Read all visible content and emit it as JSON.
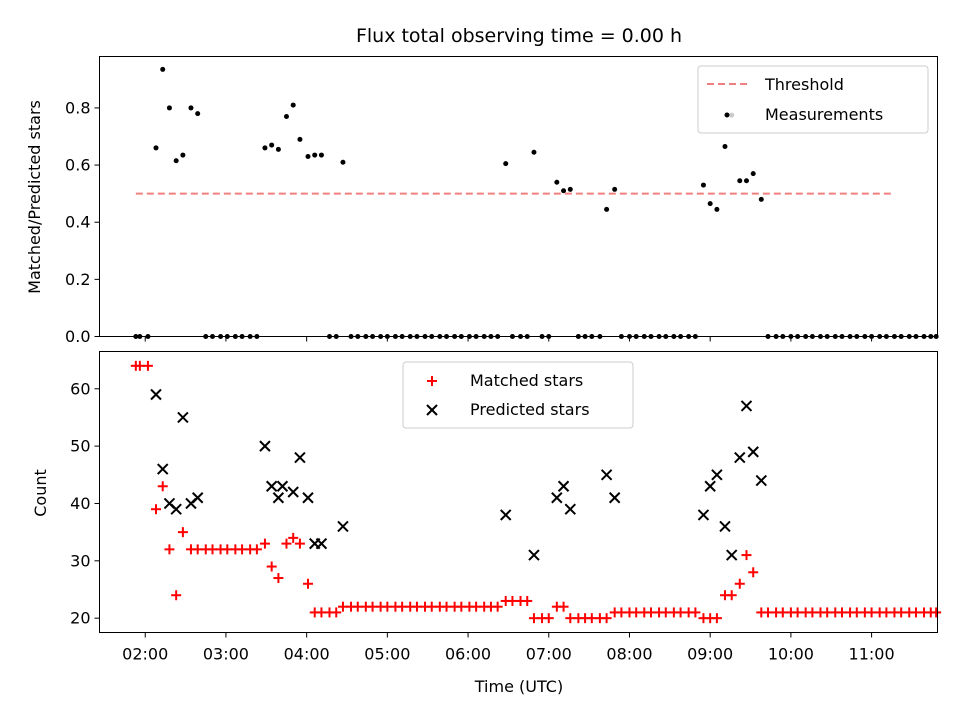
{
  "chart_data": [
    {
      "type": "scatter",
      "title": "Flux total observing time = 0.00 h",
      "ylabel": "Matched/Predicted stars",
      "xlabel": "",
      "x_unit": "hours UTC",
      "xlim": [
        "01:26",
        "11:49"
      ],
      "ylim": [
        0,
        0.98
      ],
      "y_ticks": [
        0.0,
        0.2,
        0.4,
        0.6,
        0.8
      ],
      "x_ticks": [
        "02:00",
        "03:00",
        "04:00",
        "05:00",
        "06:00",
        "07:00",
        "08:00",
        "09:00",
        "10:00",
        "11:00"
      ],
      "show_x_tick_labels": false,
      "legend_position": "top-right",
      "threshold": {
        "name": "Threshold",
        "value": 0.5,
        "x_range": [
          "01:53",
          "11:15"
        ],
        "color": "#f08080"
      },
      "series": [
        {
          "name": "Measurements",
          "marker": "dot",
          "color": "#000000",
          "points": [
            [
              "01:53",
              0
            ],
            [
              "01:56",
              0
            ],
            [
              "02:02",
              0
            ],
            [
              "02:08",
              0.66
            ],
            [
              "02:13",
              0.935
            ],
            [
              "02:18",
              0.8
            ],
            [
              "02:23",
              0.615
            ],
            [
              "02:28",
              0.635
            ],
            [
              "02:34",
              0.8
            ],
            [
              "02:39",
              0.78
            ],
            [
              "02:45",
              0
            ],
            [
              "02:50",
              0
            ],
            [
              "02:56",
              0
            ],
            [
              "03:01",
              0
            ],
            [
              "03:07",
              0
            ],
            [
              "03:12",
              0
            ],
            [
              "03:18",
              0
            ],
            [
              "03:23",
              0
            ],
            [
              "03:29",
              0.66
            ],
            [
              "03:34",
              0.67
            ],
            [
              "03:39",
              0.655
            ],
            [
              "03:45",
              0.77
            ],
            [
              "03:50",
              0.81
            ],
            [
              "03:55",
              0.69
            ],
            [
              "04:01",
              0.63
            ],
            [
              "04:06",
              0.635
            ],
            [
              "04:11",
              0.635
            ],
            [
              "04:17",
              0
            ],
            [
              "04:22",
              0
            ],
            [
              "04:27",
              0.61
            ],
            [
              "04:33",
              0
            ],
            [
              "04:38",
              0
            ],
            [
              "04:44",
              0
            ],
            [
              "04:49",
              0
            ],
            [
              "04:55",
              0
            ],
            [
              "05:00",
              0
            ],
            [
              "05:06",
              0
            ],
            [
              "05:11",
              0
            ],
            [
              "05:17",
              0
            ],
            [
              "05:22",
              0
            ],
            [
              "05:28",
              0
            ],
            [
              "05:33",
              0
            ],
            [
              "05:39",
              0
            ],
            [
              "05:44",
              0
            ],
            [
              "05:50",
              0
            ],
            [
              "05:55",
              0
            ],
            [
              "06:01",
              0
            ],
            [
              "06:06",
              0
            ],
            [
              "06:12",
              0
            ],
            [
              "06:17",
              0
            ],
            [
              "06:22",
              0
            ],
            [
              "06:28",
              0.605
            ],
            [
              "06:33",
              0
            ],
            [
              "06:39",
              0
            ],
            [
              "06:44",
              0
            ],
            [
              "06:49",
              0.645
            ],
            [
              "06:55",
              0
            ],
            [
              "07:00",
              0
            ],
            [
              "07:06",
              0.54
            ],
            [
              "07:11",
              0.51
            ],
            [
              "07:16",
              0.515
            ],
            [
              "07:22",
              0
            ],
            [
              "07:27",
              0
            ],
            [
              "07:32",
              0
            ],
            [
              "07:38",
              0
            ],
            [
              "07:43",
              0.445
            ],
            [
              "07:49",
              0.515
            ],
            [
              "07:54",
              0
            ],
            [
              "08:00",
              0
            ],
            [
              "08:05",
              0
            ],
            [
              "08:11",
              0
            ],
            [
              "08:16",
              0
            ],
            [
              "08:22",
              0
            ],
            [
              "08:27",
              0
            ],
            [
              "08:33",
              0
            ],
            [
              "08:38",
              0
            ],
            [
              "08:44",
              0
            ],
            [
              "08:49",
              0
            ],
            [
              "08:55",
              0.53
            ],
            [
              "09:00",
              0.465
            ],
            [
              "09:05",
              0.445
            ],
            [
              "09:11",
              0.665
            ],
            [
              "09:16",
              0.775
            ],
            [
              "09:22",
              0.545
            ],
            [
              "09:27",
              0.545
            ],
            [
              "09:32",
              0.57
            ],
            [
              "09:38",
              0.48
            ],
            [
              "09:43",
              0
            ],
            [
              "09:49",
              0
            ],
            [
              "09:54",
              0
            ],
            [
              "10:00",
              0
            ],
            [
              "10:05",
              0
            ],
            [
              "10:11",
              0
            ],
            [
              "10:16",
              0
            ],
            [
              "10:22",
              0
            ],
            [
              "10:27",
              0
            ],
            [
              "10:33",
              0
            ],
            [
              "10:38",
              0
            ],
            [
              "10:44",
              0
            ],
            [
              "10:49",
              0
            ],
            [
              "10:55",
              0
            ],
            [
              "11:00",
              0
            ],
            [
              "11:06",
              0
            ],
            [
              "11:11",
              0
            ],
            [
              "11:17",
              0
            ],
            [
              "11:22",
              0
            ],
            [
              "11:28",
              0
            ],
            [
              "11:33",
              0
            ],
            [
              "11:39",
              0
            ],
            [
              "11:44",
              0
            ],
            [
              "11:48",
              0
            ]
          ]
        }
      ]
    },
    {
      "type": "scatter",
      "title": "",
      "ylabel": "Count",
      "xlabel": "Time (UTC)",
      "x_unit": "hours UTC",
      "xlim": [
        "01:26",
        "11:49"
      ],
      "ylim": [
        17.5,
        66.5
      ],
      "y_ticks": [
        20,
        30,
        40,
        50,
        60
      ],
      "x_ticks": [
        "02:00",
        "03:00",
        "04:00",
        "05:00",
        "06:00",
        "07:00",
        "08:00",
        "09:00",
        "10:00",
        "11:00"
      ],
      "show_x_tick_labels": true,
      "legend_position": "top-center",
      "series": [
        {
          "name": "Matched stars",
          "marker": "plus",
          "color": "#ff0000",
          "points": [
            [
              "01:53",
              64
            ],
            [
              "01:56",
              64
            ],
            [
              "02:02",
              64
            ],
            [
              "02:08",
              39
            ],
            [
              "02:13",
              43
            ],
            [
              "02:18",
              32
            ],
            [
              "02:23",
              24
            ],
            [
              "02:28",
              35
            ],
            [
              "02:34",
              32
            ],
            [
              "02:39",
              32
            ],
            [
              "02:45",
              32
            ],
            [
              "02:50",
              32
            ],
            [
              "02:56",
              32
            ],
            [
              "03:01",
              32
            ],
            [
              "03:07",
              32
            ],
            [
              "03:12",
              32
            ],
            [
              "03:18",
              32
            ],
            [
              "03:23",
              32
            ],
            [
              "03:29",
              33
            ],
            [
              "03:34",
              29
            ],
            [
              "03:39",
              27
            ],
            [
              "03:45",
              33
            ],
            [
              "03:50",
              34
            ],
            [
              "03:55",
              33
            ],
            [
              "04:01",
              26
            ],
            [
              "04:06",
              21
            ],
            [
              "04:11",
              21
            ],
            [
              "04:17",
              21
            ],
            [
              "04:22",
              21
            ],
            [
              "04:27",
              22
            ],
            [
              "04:33",
              22
            ],
            [
              "04:38",
              22
            ],
            [
              "04:44",
              22
            ],
            [
              "04:49",
              22
            ],
            [
              "04:55",
              22
            ],
            [
              "05:00",
              22
            ],
            [
              "05:06",
              22
            ],
            [
              "05:11",
              22
            ],
            [
              "05:17",
              22
            ],
            [
              "05:22",
              22
            ],
            [
              "05:28",
              22
            ],
            [
              "05:33",
              22
            ],
            [
              "05:39",
              22
            ],
            [
              "05:44",
              22
            ],
            [
              "05:50",
              22
            ],
            [
              "05:55",
              22
            ],
            [
              "06:01",
              22
            ],
            [
              "06:06",
              22
            ],
            [
              "06:12",
              22
            ],
            [
              "06:17",
              22
            ],
            [
              "06:22",
              22
            ],
            [
              "06:28",
              23
            ],
            [
              "06:33",
              23
            ],
            [
              "06:39",
              23
            ],
            [
              "06:44",
              23
            ],
            [
              "06:49",
              20
            ],
            [
              "06:55",
              20
            ],
            [
              "07:00",
              20
            ],
            [
              "07:06",
              22
            ],
            [
              "07:11",
              22
            ],
            [
              "07:16",
              20
            ],
            [
              "07:22",
              20
            ],
            [
              "07:27",
              20
            ],
            [
              "07:32",
              20
            ],
            [
              "07:38",
              20
            ],
            [
              "07:43",
              20
            ],
            [
              "07:49",
              21
            ],
            [
              "07:54",
              21
            ],
            [
              "08:00",
              21
            ],
            [
              "08:05",
              21
            ],
            [
              "08:11",
              21
            ],
            [
              "08:16",
              21
            ],
            [
              "08:22",
              21
            ],
            [
              "08:27",
              21
            ],
            [
              "08:33",
              21
            ],
            [
              "08:38",
              21
            ],
            [
              "08:44",
              21
            ],
            [
              "08:49",
              21
            ],
            [
              "08:55",
              20
            ],
            [
              "09:00",
              20
            ],
            [
              "09:05",
              20
            ],
            [
              "09:11",
              24
            ],
            [
              "09:16",
              24
            ],
            [
              "09:22",
              26
            ],
            [
              "09:27",
              31
            ],
            [
              "09:32",
              28
            ],
            [
              "09:38",
              21
            ],
            [
              "09:43",
              21
            ],
            [
              "09:49",
              21
            ],
            [
              "09:54",
              21
            ],
            [
              "10:00",
              21
            ],
            [
              "10:05",
              21
            ],
            [
              "10:11",
              21
            ],
            [
              "10:16",
              21
            ],
            [
              "10:22",
              21
            ],
            [
              "10:27",
              21
            ],
            [
              "10:33",
              21
            ],
            [
              "10:38",
              21
            ],
            [
              "10:44",
              21
            ],
            [
              "10:49",
              21
            ],
            [
              "10:55",
              21
            ],
            [
              "11:00",
              21
            ],
            [
              "11:06",
              21
            ],
            [
              "11:11",
              21
            ],
            [
              "11:17",
              21
            ],
            [
              "11:22",
              21
            ],
            [
              "11:28",
              21
            ],
            [
              "11:33",
              21
            ],
            [
              "11:39",
              21
            ],
            [
              "11:44",
              21
            ],
            [
              "11:48",
              21
            ]
          ]
        },
        {
          "name": "Predicted stars",
          "marker": "x",
          "color": "#000000",
          "points": [
            [
              "02:08",
              59
            ],
            [
              "02:13",
              46
            ],
            [
              "02:18",
              40
            ],
            [
              "02:23",
              39
            ],
            [
              "02:28",
              55
            ],
            [
              "02:34",
              40
            ],
            [
              "02:39",
              41
            ],
            [
              "03:29",
              50
            ],
            [
              "03:34",
              43
            ],
            [
              "03:39",
              41
            ],
            [
              "03:42",
              43
            ],
            [
              "03:50",
              42
            ],
            [
              "03:55",
              48
            ],
            [
              "04:01",
              41
            ],
            [
              "04:06",
              33
            ],
            [
              "04:11",
              33
            ],
            [
              "04:27",
              36
            ],
            [
              "06:28",
              38
            ],
            [
              "06:49",
              31
            ],
            [
              "07:06",
              41
            ],
            [
              "07:11",
              43
            ],
            [
              "07:16",
              39
            ],
            [
              "07:43",
              45
            ],
            [
              "07:49",
              41
            ],
            [
              "08:55",
              38
            ],
            [
              "09:00",
              43
            ],
            [
              "09:05",
              45
            ],
            [
              "09:11",
              36
            ],
            [
              "09:16",
              31
            ],
            [
              "09:22",
              48
            ],
            [
              "09:27",
              57
            ],
            [
              "09:32",
              49
            ],
            [
              "09:38",
              44
            ]
          ]
        }
      ]
    }
  ]
}
